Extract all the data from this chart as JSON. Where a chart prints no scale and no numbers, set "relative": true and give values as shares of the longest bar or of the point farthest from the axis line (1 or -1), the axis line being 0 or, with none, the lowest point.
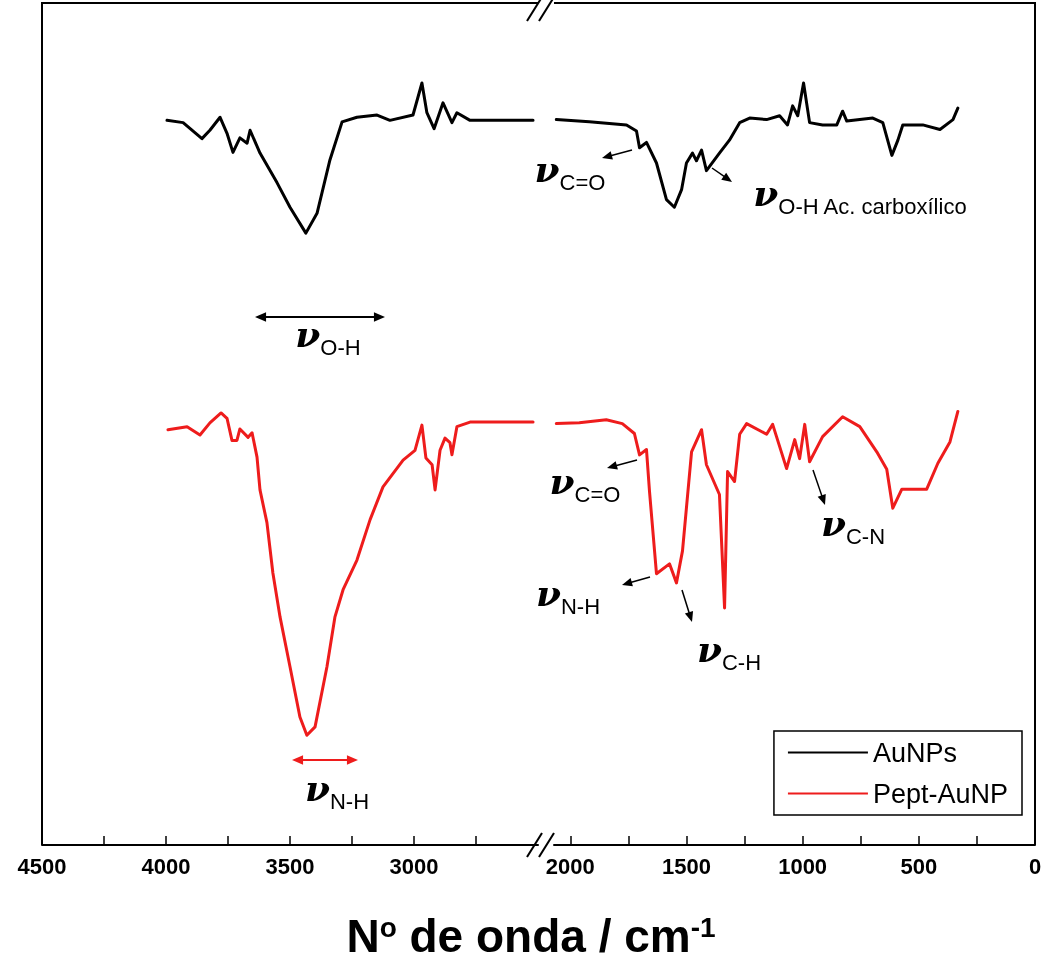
{
  "chart_data": [
    {
      "type": "line",
      "relative": true,
      "xlabel": "N$^{o}$ de onda / cm$^{-1}$",
      "xlim": [
        4500,
        2500
      ],
      "xticks": [
        4500,
        {
          "value": 4250,
          "label": null
        },
        4000,
        {
          "value": 3750,
          "label": null
        },
        3500,
        {
          "value": 3250,
          "label": null
        },
        3000,
        {
          "value": 2750,
          "label": null
        }
      ],
      "series": [
        {
          "color": "#000000",
          "x": [
            3996,
            3931,
            3855,
            3823,
            3782,
            3754,
            3730,
            3702,
            3673,
            3661,
            3621,
            3552,
            3500,
            3436,
            3391,
            3339,
            3290,
            3230,
            3149,
            3097,
            3004,
            2968,
            2948,
            2919,
            2883,
            2847,
            2827,
            2774,
            2520
          ],
          "values": [
            0.951,
            0.948,
            0.927,
            0.938,
            0.955,
            0.934,
            0.909,
            0.928,
            0.921,
            0.938,
            0.908,
            0.869,
            0.837,
            0.803,
            0.829,
            0.899,
            0.949,
            0.955,
            0.958,
            0.951,
            0.958,
            1,
            0.961,
            0.94,
            0.974,
            0.948,
            0.961,
            0.951,
            0.951
          ]
        },
        {
          "color": "#ee1c1c",
          "x": [
            3992,
            3915,
            3863,
            3823,
            3778,
            3754,
            3734,
            3714,
            3702,
            3669,
            3653,
            3633,
            3621,
            3593,
            3569,
            3540,
            3500,
            3460,
            3432,
            3399,
            3351,
            3319,
            3286,
            3230,
            3177,
            3125,
            3044,
            2996,
            2968,
            2952,
            2927,
            2915,
            2895,
            2875,
            2855,
            2847,
            2827,
            2774,
            2520
          ],
          "values": [
            0.545,
            0.549,
            0.538,
            0.554,
            0.567,
            0.56,
            0.531,
            0.531,
            0.546,
            0.535,
            0.541,
            0.509,
            0.466,
            0.423,
            0.357,
            0.299,
            0.234,
            0.168,
            0.144,
            0.155,
            0.234,
            0.299,
            0.335,
            0.374,
            0.427,
            0.47,
            0.505,
            0.518,
            0.551,
            0.508,
            0.499,
            0.466,
            0.518,
            0.534,
            0.528,
            0.512,
            0.549,
            0.555,
            0.555
          ]
        }
      ],
      "annotations": [
        "ν$_{O-H}$",
        "ν$_{N-H}$"
      ]
    },
    {
      "type": "line",
      "relative": true,
      "xlim": [
        2070,
        0
      ],
      "xticks": [
        2000,
        {
          "value": 1750,
          "label": null
        },
        1500,
        {
          "value": 1250,
          "label": null
        },
        1000,
        {
          "value": 750,
          "label": null
        },
        500,
        {
          "value": 250,
          "label": null
        },
        0
      ],
      "legend": "bottom right",
      "series": [
        {
          "name": "AuNPs",
          "color": "#000000",
          "x": [
            2060,
            1918,
            1758,
            1715,
            1702,
            1672,
            1629,
            1586,
            1552,
            1521,
            1500,
            1474,
            1457,
            1435,
            1414,
            1358,
            1315,
            1271,
            1228,
            1155,
            1099,
            1065,
            1043,
            1021,
            996,
            970,
            914,
            853,
            828,
            810,
            754,
            698,
            655,
            616,
            590,
            569,
            483,
            409,
            353,
            332
          ],
          "values": [
            0.952,
            0.949,
            0.945,
            0.937,
            0.915,
            0.922,
            0.895,
            0.847,
            0.837,
            0.86,
            0.895,
            0.908,
            0.898,
            0.912,
            0.885,
            0.908,
            0.925,
            0.948,
            0.954,
            0.952,
            0.957,
            0.945,
            0.97,
            0.957,
            1,
            0.948,
            0.945,
            0.945,
            0.963,
            0.95,
            0.952,
            0.954,
            0.948,
            0.905,
            0.925,
            0.945,
            0.945,
            0.939,
            0.952,
            0.967
          ]
        },
        {
          "name": "Pept-AuNP",
          "color": "#ee1c1c",
          "x": [
            2060,
            1961,
            1845,
            1776,
            1724,
            1702,
            1672,
            1659,
            1629,
            1573,
            1543,
            1517,
            1478,
            1435,
            1414,
            1358,
            1336,
            1323,
            1293,
            1271,
            1241,
            1155,
            1129,
            1069,
            1034,
            1013,
            991,
            970,
            914,
            828,
            754,
            681,
            638,
            612,
            573,
            466,
            418,
            366,
            332
          ],
          "values": [
            0.553,
            0.554,
            0.558,
            0.553,
            0.54,
            0.512,
            0.519,
            0.464,
            0.356,
            0.369,
            0.344,
            0.386,
            0.516,
            0.545,
            0.499,
            0.46,
            0.311,
            0.49,
            0.477,
            0.539,
            0.553,
            0.539,
            0.552,
            0.494,
            0.532,
            0.507,
            0.552,
            0.503,
            0.536,
            0.562,
            0.549,
            0.516,
            0.493,
            0.442,
            0.467,
            0.467,
            0.501,
            0.529,
            0.569
          ]
        }
      ],
      "annotations": [
        "ν$_{C=O}$",
        "ν$_{O-H Ac. carboxílico}$",
        "ν$_{C=O}$",
        "ν$_{N-H}$",
        "ν$_{C-H}$",
        "ν$_{C-N}$"
      ]
    }
  ]
}
